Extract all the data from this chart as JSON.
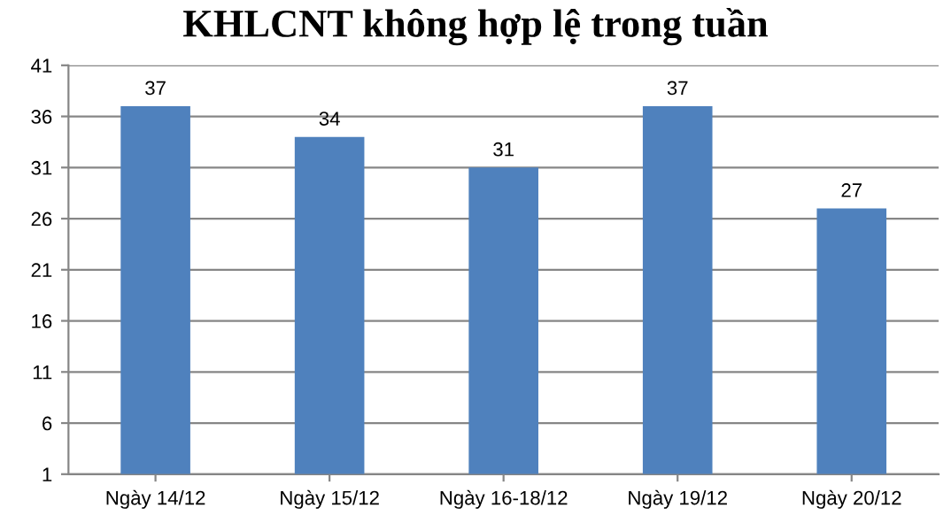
{
  "chart_data": {
    "type": "bar",
    "title": "KHLCNT không hợp lệ trong tuần",
    "categories": [
      "Ngày 14/12",
      "Ngày 15/12",
      "Ngày 16-18/12",
      "Ngày 19/12",
      "Ngày 20/12"
    ],
    "values": [
      37,
      34,
      31,
      37,
      27
    ],
    "color": "#4f81bd",
    "ylim": [
      1,
      41
    ],
    "yticks": [
      1,
      6,
      11,
      16,
      21,
      26,
      31,
      36,
      41
    ],
    "grid": "y",
    "data_labels": true,
    "legend": false
  }
}
